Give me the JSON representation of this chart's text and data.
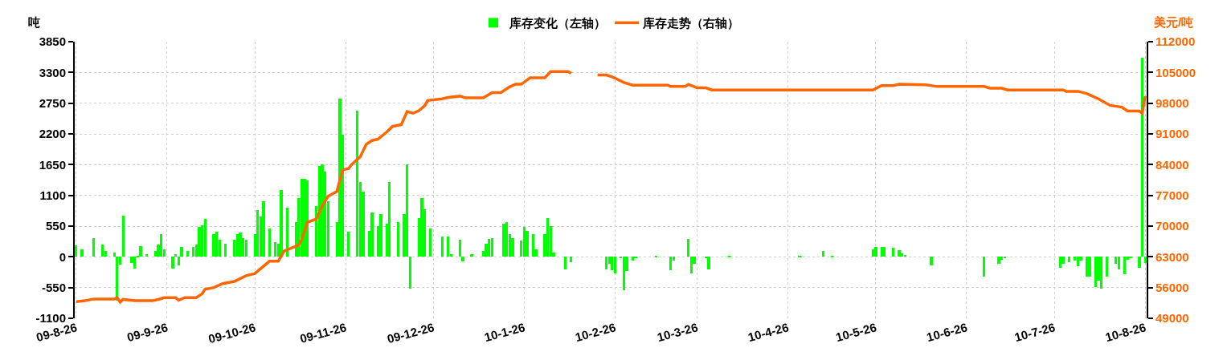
{
  "chart_data": {
    "type": "bar",
    "ylabel": "吨",
    "y2label": "美元/吨",
    "grid": true,
    "legend": "top",
    "xlim": [
      "2009-08-25T12:00",
      "2010-08-26T12:00"
    ],
    "xticks": [
      {
        "value": "2009-08-26",
        "label": "09-8-26"
      },
      {
        "value": "2009-09-26",
        "label": "09-9-26"
      },
      {
        "value": "2009-10-26",
        "label": "09-10-26"
      },
      {
        "value": "2009-11-26",
        "label": "09-11-26"
      },
      {
        "value": "2009-12-26",
        "label": "09-12-26"
      },
      {
        "value": "2010-01-26",
        "label": "10-1-26"
      },
      {
        "value": "2010-02-26",
        "label": "10-2-26"
      },
      {
        "value": "2010-03-26",
        "label": "10-3-26"
      },
      {
        "value": "2010-04-26",
        "label": "10-4-26"
      },
      {
        "value": "2010-05-26",
        "label": "10-5-26"
      },
      {
        "value": "2010-06-26",
        "label": "10-6-26"
      },
      {
        "value": "2010-07-26",
        "label": "10-7-26"
      },
      {
        "value": "2010-08-26",
        "label": "10-8-26"
      }
    ],
    "ylim": [
      -1100,
      3850
    ],
    "yticks": [
      -1100,
      -550,
      0,
      550,
      1100,
      1650,
      2200,
      2750,
      3300,
      3850
    ],
    "y2lim": [
      49000,
      112000
    ],
    "y2ticks": [
      49000,
      56000,
      63000,
      70000,
      77000,
      84000,
      91000,
      98000,
      105000,
      112000
    ],
    "series": [
      {
        "name": "库存变化（左轴）",
        "color": "#00ff00",
        "x": [
          "2009-08-26",
          "2009-08-28",
          "2009-09-01",
          "2009-09-04",
          "2009-09-05",
          "2009-09-08",
          "2009-09-09",
          "2009-09-10",
          "2009-09-11",
          "2009-09-14",
          "2009-09-15",
          "2009-09-16",
          "2009-09-17",
          "2009-09-19",
          "2009-09-22",
          "2009-09-23",
          "2009-09-24",
          "2009-09-25",
          "2009-09-28",
          "2009-09-29",
          "2009-09-30",
          "2009-10-01",
          "2009-10-03",
          "2009-10-05",
          "2009-10-06",
          "2009-10-07",
          "2009-10-08",
          "2009-10-09",
          "2009-10-12",
          "2009-10-13",
          "2009-10-14",
          "2009-10-16",
          "2009-10-19",
          "2009-10-20",
          "2009-10-21",
          "2009-10-22",
          "2009-10-23",
          "2009-10-26",
          "2009-10-27",
          "2009-10-28",
          "2009-10-29",
          "2009-10-31",
          "2009-11-02",
          "2009-11-03",
          "2009-11-04",
          "2009-11-06",
          "2009-11-09",
          "2009-11-10",
          "2009-11-11",
          "2009-11-12",
          "2009-11-13",
          "2009-11-16",
          "2009-11-17",
          "2009-11-18",
          "2009-11-19",
          "2009-11-20",
          "2009-11-23",
          "2009-11-24",
          "2009-11-25",
          "2009-11-27",
          "2009-11-30",
          "2009-12-01",
          "2009-12-02",
          "2009-12-04",
          "2009-12-05",
          "2009-12-07",
          "2009-12-08",
          "2009-12-10",
          "2009-12-11",
          "2009-12-14",
          "2009-12-16",
          "2009-12-17",
          "2009-12-18",
          "2009-12-21",
          "2009-12-22",
          "2009-12-23",
          "2009-12-25",
          "2009-12-29",
          "2009-12-31",
          "2010-01-01",
          "2010-01-04",
          "2010-01-05",
          "2010-01-08",
          "2010-01-12",
          "2010-01-13",
          "2010-01-14",
          "2010-01-15",
          "2010-01-19",
          "2010-01-20",
          "2010-01-21",
          "2010-01-22",
          "2010-01-25",
          "2010-01-26",
          "2010-01-27",
          "2010-01-29",
          "2010-01-30",
          "2010-02-02",
          "2010-02-03",
          "2010-02-04",
          "2010-02-05",
          "2010-02-09",
          "2010-02-11",
          "2010-02-23",
          "2010-02-24",
          "2010-02-25",
          "2010-02-26",
          "2010-02-28",
          "2010-03-01",
          "2010-03-02",
          "2010-03-04",
          "2010-03-05",
          "2010-03-12",
          "2010-03-17",
          "2010-03-18",
          "2010-03-23",
          "2010-03-24",
          "2010-03-25",
          "2010-03-29",
          "2010-03-30",
          "2010-04-06",
          "2010-04-30",
          "2010-05-08",
          "2010-05-11",
          "2010-05-25",
          "2010-05-26",
          "2010-05-28",
          "2010-05-29",
          "2010-06-01",
          "2010-06-03",
          "2010-06-04",
          "2010-06-05",
          "2010-06-14",
          "2010-07-02",
          "2010-07-07",
          "2010-07-08",
          "2010-07-09",
          "2010-07-28",
          "2010-07-29",
          "2010-07-31",
          "2010-08-02",
          "2010-08-03",
          "2010-08-04",
          "2010-08-06",
          "2010-08-07",
          "2010-08-09",
          "2010-08-10",
          "2010-08-11",
          "2010-08-13",
          "2010-08-16",
          "2010-08-17",
          "2010-08-19",
          "2010-08-20",
          "2010-08-21",
          "2010-08-24",
          "2010-08-25",
          "2010-08-26"
        ],
        "values": [
          200,
          140,
          340,
          220,
          110,
          70,
          -790,
          -140,
          730,
          -110,
          -210,
          20,
          190,
          50,
          110,
          220,
          400,
          140,
          -210,
          50,
          -150,
          170,
          110,
          170,
          220,
          540,
          570,
          680,
          400,
          450,
          310,
          230,
          310,
          400,
          430,
          330,
          300,
          400,
          830,
          720,
          990,
          510,
          270,
          230,
          1200,
          880,
          620,
          1050,
          1400,
          1400,
          1370,
          910,
          1630,
          1660,
          1520,
          990,
          620,
          2830,
          2180,
          450,
          2610,
          1340,
          1170,
          460,
          800,
          550,
          770,
          600,
          1340,
          620,
          770,
          1650,
          -570,
          700,
          1050,
          850,
          510,
          360,
          360,
          50,
          300,
          -80,
          50,
          100,
          230,
          320,
          340,
          600,
          620,
          400,
          340,
          290,
          540,
          460,
          400,
          140,
          400,
          700,
          550,
          70,
          -220,
          -100,
          -220,
          -120,
          -240,
          -300,
          -20,
          -600,
          -260,
          -60,
          -20,
          20,
          -240,
          -70,
          320,
          -290,
          -120,
          -20,
          -220,
          20,
          20,
          100,
          20,
          140,
          170,
          180,
          180,
          160,
          120,
          60,
          30,
          -160,
          -360,
          -130,
          -50,
          -20,
          -190,
          -120,
          -100,
          -60,
          -170,
          -70,
          -360,
          -350,
          -540,
          -430,
          -570,
          -360,
          -120,
          -220,
          -310,
          -50,
          -20,
          -190,
          3570,
          -110
        ]
      },
      {
        "name": "库存走势（右轴）",
        "type": "line",
        "axis": "y2",
        "color": "#ff6600",
        "x": [
          "2009-08-26",
          "2009-08-29",
          "2009-09-01",
          "2009-09-08",
          "2009-09-09",
          "2009-09-10",
          "2009-09-11",
          "2009-09-15",
          "2009-09-21",
          "2009-09-23",
          "2009-09-25",
          "2009-09-29",
          "2009-09-30",
          "2009-10-02",
          "2009-10-06",
          "2009-10-08",
          "2009-10-09",
          "2009-10-12",
          "2009-10-15",
          "2009-10-19",
          "2009-10-23",
          "2009-10-26",
          "2009-10-31",
          "2009-11-03",
          "2009-11-05",
          "2009-11-10",
          "2009-11-11",
          "2009-11-13",
          "2009-11-16",
          "2009-11-18",
          "2009-11-20",
          "2009-11-23",
          "2009-11-25",
          "2009-11-27",
          "2009-11-28",
          "2009-12-01",
          "2009-12-03",
          "2009-12-05",
          "2009-12-07",
          "2009-12-10",
          "2009-12-12",
          "2009-12-15",
          "2009-12-17",
          "2009-12-19",
          "2009-12-21",
          "2009-12-23",
          "2009-12-24",
          "2009-12-29",
          "2009-12-31",
          "2010-01-04",
          "2010-01-06",
          "2010-01-12",
          "2010-01-15",
          "2010-01-18",
          "2010-01-21",
          "2010-01-23",
          "2010-01-25",
          "2010-01-28",
          "2010-02-02",
          "2010-02-04",
          "2010-02-10",
          "2010-02-11",
          "2010-02-15",
          "2010-02-20",
          "2010-02-23",
          "2010-02-25",
          "2010-03-01",
          "2010-03-04",
          "2010-03-16",
          "2010-03-17",
          "2010-03-22",
          "2010-03-23",
          "2010-03-26",
          "2010-03-29",
          "2010-03-31",
          "2010-05-25",
          "2010-05-28",
          "2010-06-01",
          "2010-06-03",
          "2010-06-12",
          "2010-06-16",
          "2010-07-02",
          "2010-07-04",
          "2010-07-08",
          "2010-07-10",
          "2010-07-29",
          "2010-07-30",
          "2010-08-03",
          "2010-08-06",
          "2010-08-10",
          "2010-08-14",
          "2010-08-18",
          "2010-08-20",
          "2010-08-24",
          "2010-08-25",
          "2010-08-26"
        ],
        "values": [
          52800,
          53000,
          53400,
          53400,
          53700,
          52700,
          53300,
          53000,
          53000,
          53300,
          53700,
          53700,
          53100,
          53700,
          53700,
          54600,
          55600,
          56000,
          56900,
          57400,
          58700,
          59200,
          62000,
          62000,
          64300,
          65700,
          67000,
          70900,
          71600,
          74600,
          76800,
          77900,
          82800,
          83100,
          84000,
          85800,
          88600,
          89500,
          89800,
          91400,
          92700,
          93100,
          96100,
          95700,
          96300,
          97400,
          98600,
          99000,
          99300,
          99600,
          99200,
          99200,
          100400,
          100400,
          101700,
          102300,
          102300,
          103800,
          103800,
          105200,
          105200,
          104800,
          null,
          104400,
          104400,
          104000,
          102700,
          102100,
          102100,
          101800,
          101800,
          102300,
          101500,
          101500,
          101000,
          101000,
          102000,
          102000,
          102300,
          102200,
          101800,
          101800,
          101400,
          101400,
          101000,
          101000,
          100700,
          100700,
          100200,
          99000,
          97500,
          97100,
          96200,
          96200,
          95700,
          99600
        ]
      }
    ]
  }
}
